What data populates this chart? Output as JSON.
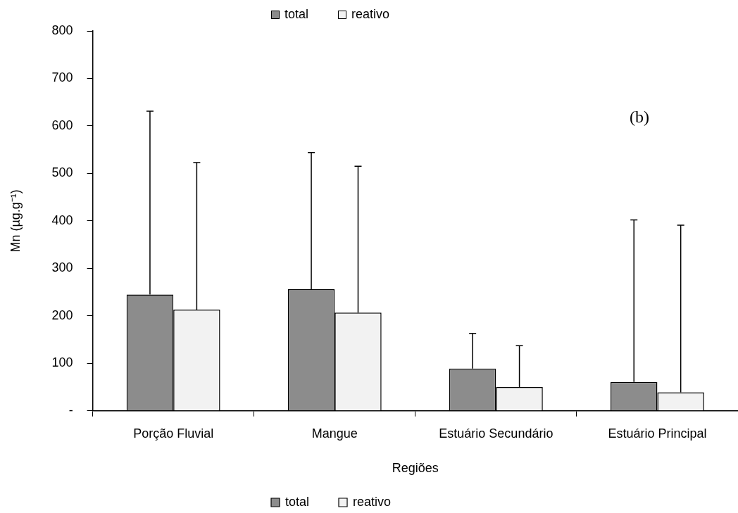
{
  "chart_data": {
    "type": "bar",
    "xlabel": "Regiões",
    "ylabel": "Mn (µg.g⁻¹)",
    "categories": [
      "Porção Fluvial",
      "Mangue",
      "Estuário Secundário",
      "Estuário Principal"
    ],
    "series": [
      {
        "name": "total",
        "color": "#8c8c8c",
        "values": [
          245,
          256,
          89,
          61
        ],
        "errors": [
          [
            245,
            631
          ],
          [
            256,
            544
          ],
          [
            89,
            163
          ],
          [
            61,
            402
          ]
        ]
      },
      {
        "name": "reativo",
        "color": "#f2f2f2",
        "values": [
          213,
          207,
          50,
          39
        ],
        "errors": [
          [
            213,
            523
          ],
          [
            207,
            515
          ],
          [
            50,
            137
          ],
          [
            39,
            391
          ]
        ]
      }
    ],
    "ylim": [
      0,
      800
    ],
    "yticks": [
      {
        "value": 0,
        "label": "-"
      },
      100,
      200,
      300,
      400,
      500,
      600,
      700,
      800
    ],
    "grid": false,
    "legend": "bottom",
    "annotations": [
      "(b)"
    ]
  }
}
